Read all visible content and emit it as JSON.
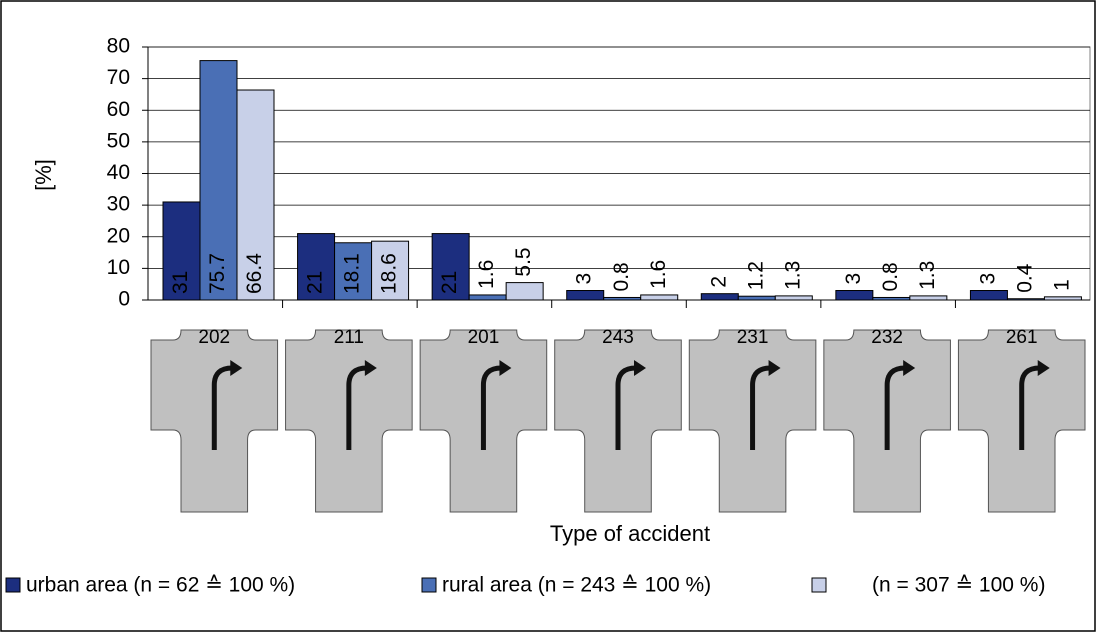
{
  "chart_data": {
    "type": "bar",
    "y_label": "[%]",
    "x_label": "Type of accident",
    "categories": [
      "202",
      "211",
      "201",
      "243",
      "231",
      "232",
      "261"
    ],
    "series": [
      {
        "name": "urban area (n = 62 ≙ 100 %)",
        "color": "#1c2e7f",
        "values": [
          31,
          21,
          21,
          3,
          2,
          3,
          3
        ]
      },
      {
        "name": "rural area (n = 243 ≙ 100 %)",
        "color": "#4a6fb5",
        "values": [
          75.7,
          18.1,
          1.6,
          0.8,
          1.2,
          0.8,
          0.4
        ]
      },
      {
        "name": "(n = 307 ≙ 100 %)",
        "color": "#c8d0e8",
        "values": [
          66.4,
          18.6,
          5.5,
          1.6,
          1.3,
          1.3,
          1
        ]
      }
    ],
    "ylim": [
      0,
      80
    ],
    "yticks": [
      0,
      10,
      20,
      30,
      40,
      50,
      60,
      70,
      80
    ],
    "grid": true
  }
}
